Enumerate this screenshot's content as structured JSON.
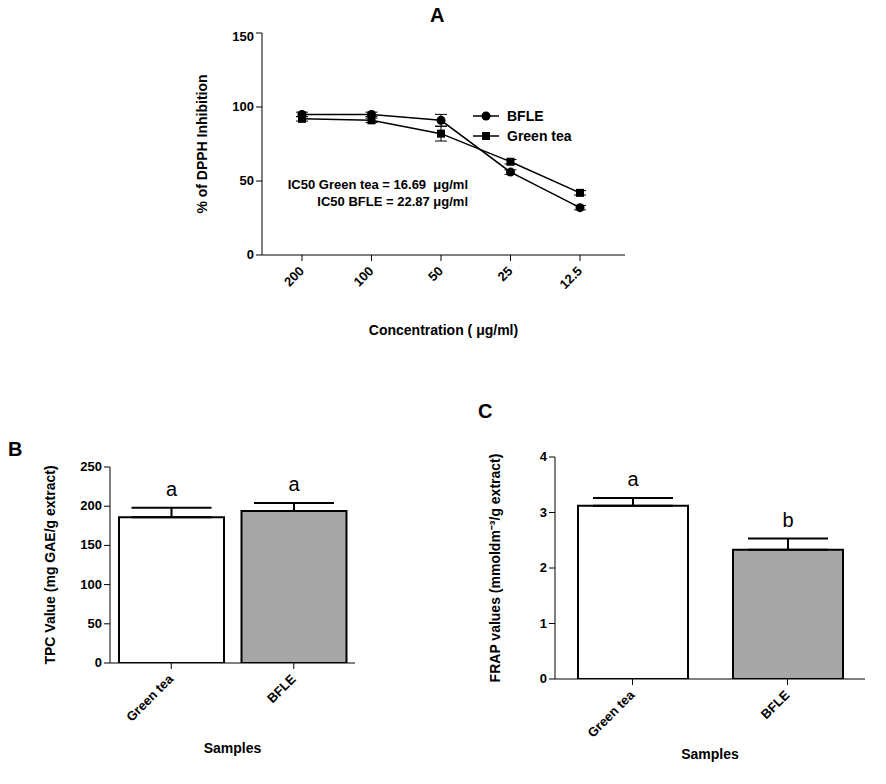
{
  "chart_data": [
    {
      "type": "line",
      "title": "A",
      "y_label": "% of DPPH Inhibition",
      "x_label": "Concentration ( μg/ml)",
      "categories": [
        "200",
        "100",
        "50",
        "25",
        "12.5"
      ],
      "series": [
        {
          "name": "BFLE",
          "color": "#000000",
          "marker": "circle",
          "values": [
            95,
            95,
            91,
            56,
            32
          ],
          "errors": [
            1.5,
            1.5,
            4,
            1.5,
            1.5
          ]
        },
        {
          "name": "Green tea",
          "color": "#000000",
          "marker": "square",
          "values": [
            92,
            91,
            82,
            63,
            42
          ],
          "errors": [
            1.5,
            1.5,
            5,
            1.5,
            1.5
          ]
        }
      ],
      "annotations": [
        "IC50 Green tea = 16.69  μg/ml",
        "IC50 BFLE = 22.87 μg/ml"
      ],
      "ylim": [
        0,
        150
      ],
      "yticks": [
        0,
        50,
        100,
        150
      ],
      "legend": "upper right"
    },
    {
      "type": "bar",
      "title": "B",
      "y_label": "TPC Value  (mg GAE/g extract)",
      "x_label": "Samples",
      "categories": [
        "Green tea",
        "BFLE"
      ],
      "values": [
        186,
        194
      ],
      "errors": [
        12,
        10
      ],
      "significance": [
        "a",
        "a"
      ],
      "colors": [
        "#ffffff",
        "#a6a6a6"
      ],
      "ylim": [
        0,
        250
      ],
      "yticks": [
        0,
        50,
        100,
        150,
        200,
        250
      ]
    },
    {
      "type": "bar",
      "title": "C",
      "y_label": "FRAP values (mmoldm⁻³/g extract)",
      "x_label": "Samples",
      "categories": [
        "Green tea",
        "BFLE"
      ],
      "values": [
        3.12,
        2.33
      ],
      "errors": [
        0.14,
        0.2
      ],
      "significance": [
        "a",
        "b"
      ],
      "colors": [
        "#ffffff",
        "#a6a6a6"
      ],
      "ylim": [
        0,
        4
      ],
      "yticks": [
        0,
        1,
        2,
        3,
        4
      ]
    }
  ]
}
